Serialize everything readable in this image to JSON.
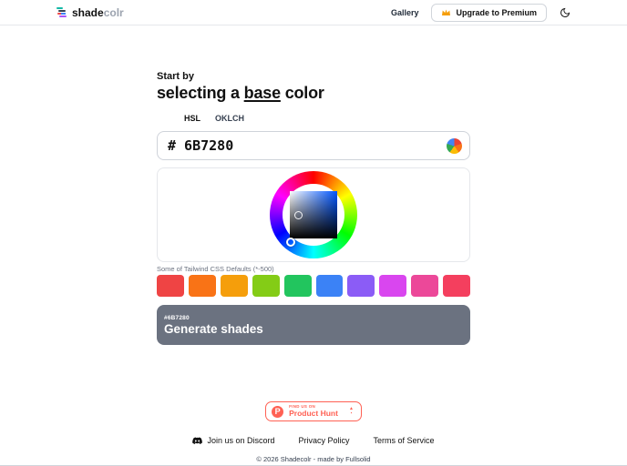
{
  "header": {
    "logo_bold": "shade",
    "logo_muted": "colr",
    "gallery_label": "Gallery",
    "upgrade_label": "Upgrade to Premium"
  },
  "hero": {
    "kicker": "Start by",
    "title_pre": "selecting a ",
    "title_underlined": "base",
    "title_post": " color"
  },
  "tabs": [
    {
      "label": "HSL"
    },
    {
      "label": "OKLCH"
    }
  ],
  "color_input": {
    "value": "# 6B7280"
  },
  "picker": {
    "hue_color": "#0055ff",
    "selected_hex": "#6B7280"
  },
  "tailwind": {
    "label": "Some of Tailwind CSS Defaults (*-500)",
    "swatches": [
      {
        "name": "red-500",
        "hex": "#ef4444"
      },
      {
        "name": "orange-500",
        "hex": "#f97316"
      },
      {
        "name": "amber-500",
        "hex": "#f59e0b"
      },
      {
        "name": "lime-500",
        "hex": "#84cc16"
      },
      {
        "name": "green-500",
        "hex": "#22c55e"
      },
      {
        "name": "blue-500",
        "hex": "#3b82f6"
      },
      {
        "name": "violet-500",
        "hex": "#8b5cf6"
      },
      {
        "name": "fuchsia-500",
        "hex": "#d946ef"
      },
      {
        "name": "pink-500",
        "hex": "#ec4899"
      },
      {
        "name": "rose-500",
        "hex": "#f43f5e"
      }
    ]
  },
  "generate": {
    "hex_label": "#6B7280",
    "label": "Generate shades",
    "bg": "#6B7280"
  },
  "product_hunt": {
    "kicker": "FIND US ON",
    "name": "Product Hunt",
    "upvote_icon": "▲"
  },
  "footer": {
    "discord_label": "Join us on Discord",
    "privacy_label": "Privacy Policy",
    "terms_label": "Terms of Service",
    "copyright": "© 2026 Shadecolr - made by Fullsolid"
  }
}
